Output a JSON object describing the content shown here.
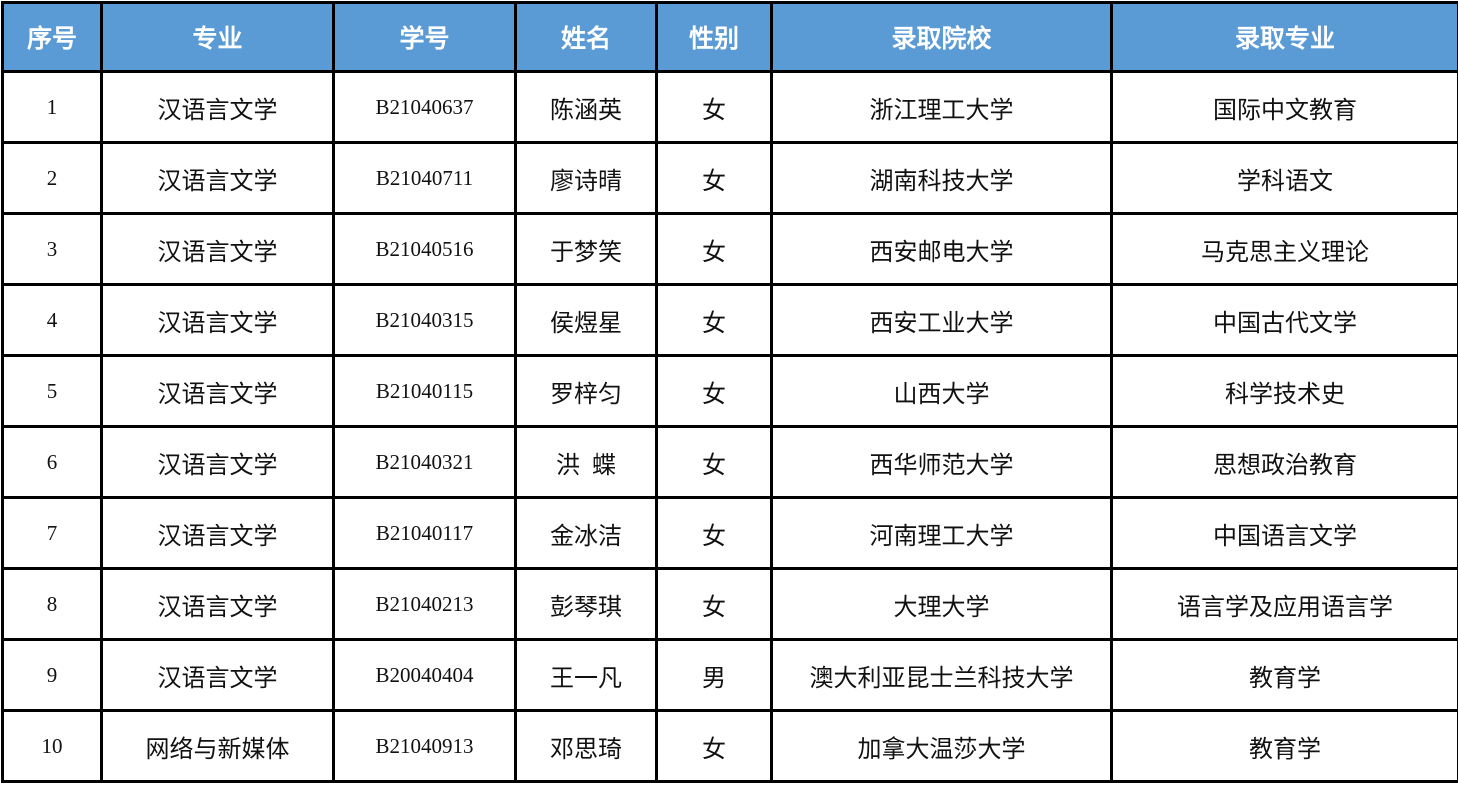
{
  "header_color": "#5b9bd5",
  "columns": [
    "序号",
    "专业",
    "学号",
    "姓名",
    "性别",
    "录取院校",
    "录取专业"
  ],
  "rows": [
    [
      "1",
      "汉语言文学",
      "B21040637",
      "陈涵英",
      "女",
      "浙江理工大学",
      "国际中文教育"
    ],
    [
      "2",
      "汉语言文学",
      "B21040711",
      "廖诗晴",
      "女",
      "湖南科技大学",
      "学科语文"
    ],
    [
      "3",
      "汉语言文学",
      "B21040516",
      "于梦笑",
      "女",
      "西安邮电大学",
      "马克思主义理论"
    ],
    [
      "4",
      "汉语言文学",
      "B21040315",
      "侯煜星",
      "女",
      "西安工业大学",
      "中国古代文学"
    ],
    [
      "5",
      "汉语言文学",
      "B21040115",
      "罗梓匀",
      "女",
      "山西大学",
      "科学技术史"
    ],
    [
      "6",
      "汉语言文学",
      "B21040321",
      "洪  蝶",
      "女",
      "西华师范大学",
      "思想政治教育"
    ],
    [
      "7",
      "汉语言文学",
      "B21040117",
      "金冰洁",
      "女",
      "河南理工大学",
      "中国语言文学"
    ],
    [
      "8",
      "汉语言文学",
      "B21040213",
      "彭琴琪",
      "女",
      "大理大学",
      "语言学及应用语言学"
    ],
    [
      "9",
      "汉语言文学",
      "B20040404",
      "王一凡",
      "男",
      "澳大利亚昆士兰科技大学",
      "教育学"
    ],
    [
      "10",
      "网络与新媒体",
      "B21040913",
      "邓思琦",
      "女",
      "加拿大温莎大学",
      "教育学"
    ]
  ]
}
